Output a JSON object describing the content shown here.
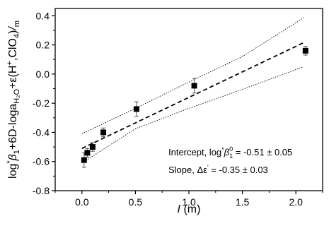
{
  "chart_data": {
    "type": "scatter",
    "xlabel_italic": "I",
    "xlabel_rest": " (m)",
    "ylabel_parts": {
      "log": "log",
      "star": "*",
      "beta": "β",
      "beta_sub": "1",
      "mid": "+6D-loga",
      "h2o_sub": "H₂O",
      "eps": "+ε(H",
      "plus_sup": "+",
      "comma": ",ClO",
      "clo4_sub": "4",
      "close": ")",
      "slash": "/",
      "m_sub": "m"
    },
    "xlim": [
      -0.25,
      2.25
    ],
    "ylim": [
      -0.8,
      0.45
    ],
    "x_ticks": [
      0.0,
      0.5,
      1.0,
      1.5,
      2.0
    ],
    "x_tick_labels": [
      "0.0",
      "0.5",
      "1.0",
      "1.5",
      "2.0"
    ],
    "y_ticks": [
      -0.8,
      -0.6,
      -0.4,
      -0.2,
      0.0,
      0.2,
      0.4
    ],
    "y_tick_labels": [
      "-0.8",
      "-0.6",
      "-0.4",
      "-0.2",
      "0.0",
      "0.2",
      "0.4"
    ],
    "points": [
      {
        "x": 0.02,
        "y": -0.59,
        "err": 0.05
      },
      {
        "x": 0.05,
        "y": -0.54,
        "err": 0.03
      },
      {
        "x": 0.1,
        "y": -0.5,
        "err": 0.03
      },
      {
        "x": 0.2,
        "y": -0.4,
        "err": 0.03
      },
      {
        "x": 0.51,
        "y": -0.24,
        "err": 0.05
      },
      {
        "x": 1.05,
        "y": -0.08,
        "err": 0.05
      },
      {
        "x": 2.09,
        "y": 0.16,
        "err": 0.03
      }
    ],
    "fit_line": {
      "intercept": -0.51,
      "slope": 0.35,
      "x_range": [
        0.0,
        2.07
      ]
    },
    "confidence_upper": [
      [
        0.0,
        -0.41
      ],
      [
        0.5,
        -0.235
      ],
      [
        1.0,
        -0.055
      ],
      [
        1.5,
        0.12
      ],
      [
        2.07,
        0.385
      ]
    ],
    "confidence_lower": [
      [
        0.0,
        -0.61
      ],
      [
        0.5,
        -0.375
      ],
      [
        1.0,
        -0.235
      ],
      [
        1.5,
        -0.105
      ],
      [
        2.07,
        0.05
      ]
    ],
    "annotations": {
      "intercept": {
        "prefix": "Intercept, log",
        "star": "*",
        "beta": "β",
        "sup": "0",
        "sub": "1",
        "value": " = -0.51 ± 0.05"
      },
      "slope": {
        "prefix": "Slope, Δε",
        "prime": "'",
        "value": " = -0.35 ± 0.03"
      }
    }
  }
}
